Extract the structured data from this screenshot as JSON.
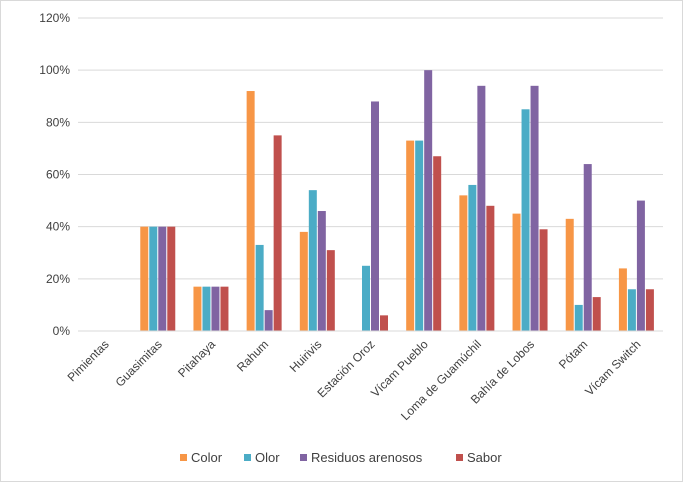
{
  "chart_data": {
    "type": "bar",
    "title": "",
    "xlabel": "",
    "ylabel": "",
    "ylim": [
      0,
      120
    ],
    "ytick_step": 20,
    "ytick_labels": [
      "0%",
      "20%",
      "40%",
      "60%",
      "80%",
      "100%",
      "120%"
    ],
    "grid": true,
    "legend_position": "bottom",
    "categories": [
      "Pimientas",
      "Guasimitas",
      "Pitahaya",
      "Rahum",
      "Huirivis",
      "Estación Oroz",
      "Vícam Pueblo",
      "Loma de Guamúchil",
      "Bahía de Lobos",
      "Pótam",
      "Vícam Switch"
    ],
    "series": [
      {
        "name": "Color",
        "color": "#f79646",
        "values": [
          0,
          40,
          17,
          92,
          38,
          0,
          73,
          52,
          45,
          43,
          24
        ]
      },
      {
        "name": "Olor",
        "color": "#4bacc6",
        "values": [
          0,
          40,
          17,
          33,
          54,
          25,
          73,
          56,
          85,
          10,
          16
        ]
      },
      {
        "name": "Residuos arenosos",
        "color": "#8064a2",
        "values": [
          0,
          40,
          17,
          8,
          46,
          88,
          100,
          94,
          94,
          64,
          50
        ]
      },
      {
        "name": "Sabor",
        "color": "#c0504d",
        "values": [
          0,
          40,
          17,
          75,
          31,
          6,
          67,
          48,
          39,
          13,
          16
        ]
      }
    ]
  }
}
